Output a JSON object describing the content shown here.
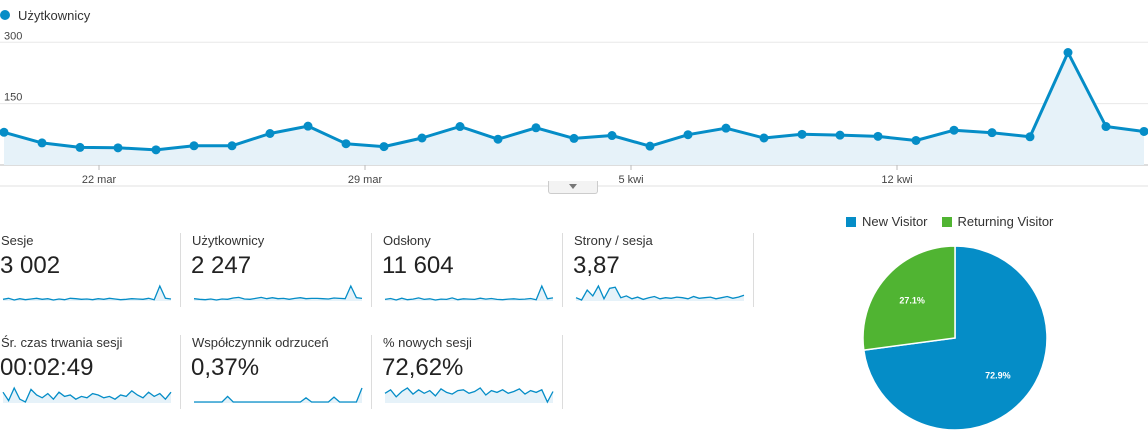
{
  "main_series_label": "Użytkownicy",
  "colors": {
    "line": "#058dc7",
    "fill": "#e6f2f9",
    "new": "#058dc7",
    "returning": "#50b432"
  },
  "chart_data": [
    {
      "type": "area",
      "series": [
        {
          "name": "Użytkownicy",
          "values": [
            80,
            54,
            43,
            42,
            37,
            47,
            47,
            77,
            95,
            52,
            45,
            66,
            94,
            63,
            91,
            65,
            72,
            46,
            74,
            90,
            66,
            75,
            73,
            70,
            60,
            85,
            79,
            69,
            275,
            94,
            82
          ]
        }
      ],
      "y_ticks": [
        150,
        300
      ],
      "ylim": [
        0,
        330
      ],
      "x_ticks": [
        {
          "index": 2.5,
          "label": "22 mar"
        },
        {
          "index": 9.5,
          "label": "29 mar"
        },
        {
          "index": 16.5,
          "label": "5 kwi"
        },
        {
          "index": 23.5,
          "label": "12 kwi"
        }
      ],
      "grid": true
    },
    {
      "type": "pie",
      "legend": [
        "New Visitor",
        "Returning Visitor"
      ],
      "legend_position": "top",
      "slices": [
        {
          "name": "New Visitor",
          "value": 72.9,
          "label": "72.9%"
        },
        {
          "name": "Returning Visitor",
          "value": 27.1,
          "label": "27.1%"
        }
      ]
    }
  ],
  "metrics": [
    {
      "label": "Sesje",
      "value": "3 002",
      "spark": [
        35,
        38,
        33,
        37,
        34,
        36,
        38,
        35,
        37,
        33,
        36,
        34,
        38,
        37,
        35,
        36,
        34,
        37,
        35,
        38,
        36,
        34,
        35,
        37,
        36,
        35,
        38,
        34,
        75,
        38,
        36
      ]
    },
    {
      "label": "Użytkownicy",
      "value": "2 247",
      "spark": [
        36,
        34,
        33,
        35,
        32,
        35,
        34,
        38,
        40,
        35,
        34,
        37,
        40,
        36,
        39,
        36,
        37,
        34,
        37,
        39,
        36,
        37,
        37,
        36,
        35,
        38,
        37,
        36,
        75,
        39,
        37
      ]
    },
    {
      "label": "Odsłony",
      "value": "11 604",
      "spark": [
        36,
        39,
        34,
        40,
        35,
        37,
        41,
        36,
        38,
        34,
        37,
        36,
        41,
        35,
        38,
        37,
        36,
        40,
        37,
        39,
        36,
        35,
        37,
        38,
        36,
        37,
        39,
        35,
        80,
        38,
        41
      ]
    },
    {
      "label": "Strony / sesja",
      "value": "3,87",
      "spark": [
        52,
        48,
        65,
        55,
        72,
        50,
        68,
        70,
        52,
        55,
        50,
        53,
        49,
        52,
        54,
        50,
        52,
        51,
        53,
        52,
        50,
        54,
        51,
        52,
        53,
        50,
        52,
        54,
        51,
        53,
        56
      ]
    },
    {
      "label": "Śr. czas trwania sesji",
      "value": "00:02:49",
      "spark": [
        55,
        25,
        70,
        30,
        20,
        65,
        45,
        35,
        50,
        30,
        55,
        40,
        45,
        30,
        40,
        35,
        50,
        45,
        35,
        40,
        30,
        45,
        40,
        60,
        45,
        35,
        55,
        40,
        50,
        30,
        55
      ]
    },
    {
      "label": "Współczynnik odrzuceń",
      "value": "0,37%",
      "spark": [
        0,
        0,
        0,
        0,
        0,
        0,
        40,
        0,
        0,
        0,
        0,
        0,
        0,
        0,
        0,
        0,
        0,
        0,
        0,
        0,
        30,
        0,
        0,
        0,
        0,
        35,
        0,
        0,
        0,
        0,
        100
      ]
    },
    {
      "label": "% nowych sesji",
      "value": "72,62%",
      "spark": [
        66,
        70,
        62,
        68,
        72,
        65,
        70,
        66,
        69,
        63,
        71,
        67,
        65,
        69,
        70,
        66,
        68,
        72,
        64,
        69,
        67,
        70,
        66,
        68,
        71,
        65,
        69,
        67,
        70,
        56,
        68
      ]
    }
  ]
}
